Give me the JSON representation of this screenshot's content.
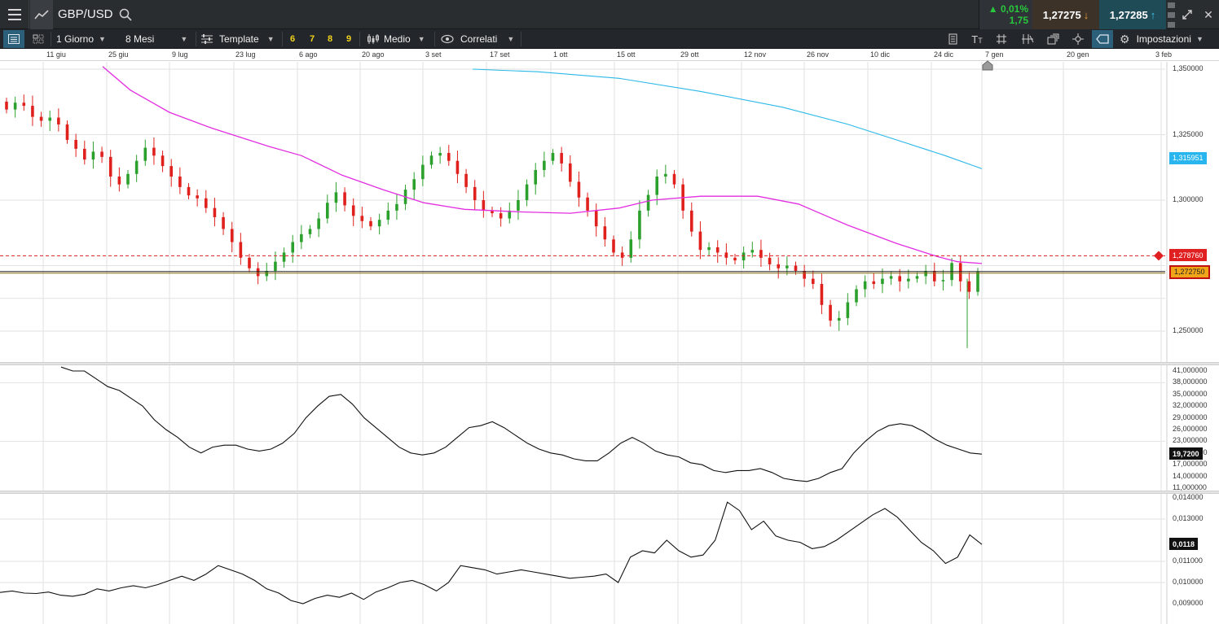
{
  "header": {
    "symbol": "GBP/USD",
    "change_pct": "▲ 0,01%",
    "change_pts": "1,75",
    "sell_price": "1,27275",
    "buy_price": "1,27285"
  },
  "toolbar": {
    "interval": "1 Giorno",
    "range": "8 Mesi",
    "template": "Template",
    "presets": [
      "6",
      "7",
      "8",
      "9"
    ],
    "style": "Medio",
    "correlated": "Correlati",
    "settings": "Impostazioni"
  },
  "time_axis": [
    "11 giu",
    "25 giu",
    "9 lug",
    "23 lug",
    "6 ago",
    "20 ago",
    "3 set",
    "17 set",
    "1 ott",
    "15 ott",
    "29 ott",
    "12 nov",
    "26 nov",
    "10 dic",
    "24 dic",
    "7 gen",
    "20 gen",
    "3 feb"
  ],
  "colors": {
    "up": "#2ca02c",
    "down": "#e0201c",
    "ma_fast": "#e22ee0",
    "ma_slow": "#2ab8e8",
    "price_line": "#8a6a10",
    "alert_line": "#e02020"
  },
  "chart_data": [
    {
      "type": "candlestick",
      "title": "GBP/USD",
      "ylim": [
        1.24,
        1.356
      ],
      "y_ticks": [
        "1,350000",
        "1,325000",
        "1,300000",
        "1,250000"
      ],
      "grid": true,
      "series": [
        {
          "name": "",
          "values": [
            1.3346,
            1.3372,
            1.336,
            1.3318,
            1.3303,
            1.3315,
            1.3289,
            1.323,
            1.3196,
            1.3155,
            1.3185,
            1.3165,
            1.309,
            1.306,
            1.31,
            1.315,
            1.32,
            1.317,
            1.313,
            1.309,
            1.305,
            1.3018,
            1.3007,
            1.297,
            1.2935,
            1.289,
            1.284,
            1.278,
            1.274,
            1.271,
            1.273,
            1.2765,
            1.28,
            1.284,
            1.287,
            1.289,
            1.293,
            1.299,
            1.303,
            1.298,
            1.294,
            1.292,
            1.29,
            1.2925,
            1.296,
            1.2985,
            1.304,
            1.308,
            1.3135,
            1.317,
            1.318,
            1.315,
            1.31,
            1.305,
            1.3,
            1.296,
            1.295,
            1.293,
            1.296,
            1.3,
            1.306,
            1.3115,
            1.315,
            1.318,
            1.314,
            1.307,
            1.301,
            1.296,
            1.29,
            1.285,
            1.28,
            1.278,
            1.285,
            1.296,
            1.302,
            1.309,
            1.31,
            1.306,
            1.296,
            1.288,
            1.281,
            1.282,
            1.28,
            1.278,
            1.277,
            1.28,
            1.281,
            1.278,
            1.2755,
            1.274,
            1.275,
            1.273,
            1.27,
            1.268,
            1.26,
            1.254,
            1.255,
            1.261,
            1.266,
            1.269,
            1.268,
            1.27,
            1.271,
            1.269,
            1.27,
            1.271,
            1.273,
            1.269,
            1.2695,
            1.276,
            1.269,
            1.265,
            1.2727
          ]
        }
      ],
      "overlays": [
        {
          "name": "",
          "ma_fast_last": 1.278
        },
        {
          "name": "",
          "ma_slow_last": 1.31595
        }
      ],
      "labels": {
        "ma_slow_value": "1,315951",
        "alert_value": "1,278760",
        "last_value": "1,272750"
      }
    },
    {
      "type": "line",
      "ylim": [
        10.0,
        42.5
      ],
      "y_ticks": [
        "41,000000",
        "38,000000",
        "35,000000",
        "32,000000",
        "29,000000",
        "26,000000",
        "23,000000",
        "20,000000",
        "17,000000",
        "14,000000",
        "11,000000"
      ],
      "values": [
        42.0,
        41.0,
        41.0,
        39.0,
        37.0,
        36.0,
        34.0,
        32.0,
        28.5,
        26.0,
        24.0,
        21.5,
        20.0,
        21.5,
        22.0,
        22.0,
        21.0,
        20.5,
        21.0,
        22.5,
        25.0,
        29.0,
        32.0,
        34.5,
        35.0,
        32.5,
        29.0,
        26.5,
        24.0,
        21.5,
        20.0,
        19.5,
        20.0,
        21.5,
        24.0,
        26.5,
        27.0,
        28.0,
        26.5,
        24.5,
        22.5,
        21.0,
        20.0,
        19.5,
        18.5,
        18.0,
        18.0,
        20.0,
        22.5,
        24.0,
        22.5,
        20.5,
        19.5,
        19.0,
        17.5,
        17.0,
        15.5,
        15.0,
        15.5,
        15.5,
        16.0,
        15.0,
        13.5,
        13.0,
        12.7,
        13.5,
        15.0,
        16.0,
        20.0,
        23.0,
        25.5,
        27.0,
        27.5,
        27.0,
        25.5,
        23.5,
        22.0,
        21.0,
        20.0,
        19.7
      ],
      "labels": {
        "last_value": "19,7200"
      }
    },
    {
      "type": "line",
      "ylim": [
        0.0088,
        0.0142
      ],
      "y_ticks": [
        "0,014000",
        "0,013000",
        "0,011000",
        "0,010000",
        "0,009000"
      ],
      "values": [
        0.00953,
        0.0096,
        0.0095,
        0.00948,
        0.00955,
        0.0094,
        0.00935,
        0.00945,
        0.0097,
        0.0096,
        0.00975,
        0.00985,
        0.00975,
        0.0099,
        0.0101,
        0.0103,
        0.0101,
        0.0104,
        0.0108,
        0.0106,
        0.0104,
        0.0101,
        0.0097,
        0.0095,
        0.00915,
        0.009,
        0.00925,
        0.0094,
        0.0093,
        0.0095,
        0.0092,
        0.00955,
        0.00975,
        0.01,
        0.0101,
        0.0099,
        0.0096,
        0.01,
        0.0108,
        0.0107,
        0.0106,
        0.0104,
        0.0105,
        0.0106,
        0.0105,
        0.0104,
        0.0103,
        0.0102,
        0.01025,
        0.0103,
        0.0104,
        0.01,
        0.0112,
        0.0115,
        0.0114,
        0.012,
        0.0115,
        0.0112,
        0.0113,
        0.012,
        0.0138,
        0.0134,
        0.0125,
        0.0129,
        0.0122,
        0.012,
        0.0119,
        0.0116,
        0.0117,
        0.012,
        0.0124,
        0.0128,
        0.0132,
        0.0135,
        0.0131,
        0.0125,
        0.0119,
        0.0115,
        0.0109,
        0.0112,
        0.01225,
        0.0118
      ]
    }
  ]
}
